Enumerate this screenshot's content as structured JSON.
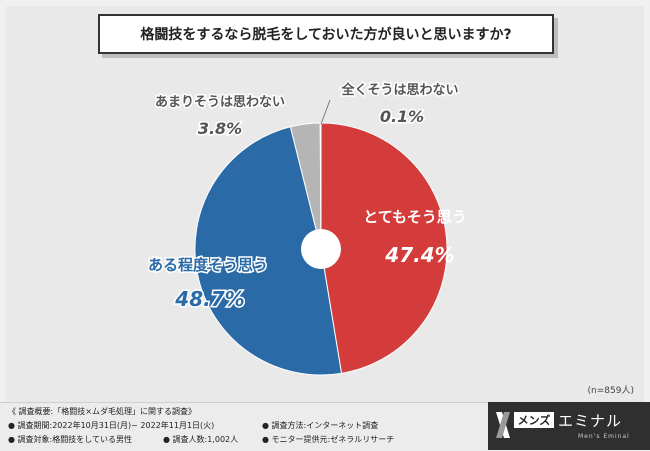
{
  "chart_data": {
    "type": "pie",
    "title": "格闘技をするなら脱毛をしておいた方が良いと思いますか?",
    "slices": [
      {
        "label": "とてもそう思う",
        "value": 47.4,
        "value_text": "47.4%",
        "color": "#d43b3b"
      },
      {
        "label": "ある程度そう思う",
        "value": 48.7,
        "value_text": "48.7%",
        "color": "#2a6aa6"
      },
      {
        "label": "あまりそうは思わない",
        "value": 3.8,
        "value_text": "3.8%",
        "color": "#b5b5b5"
      },
      {
        "label": "全くそうは思わない",
        "value": 0.1,
        "value_text": "0.1%",
        "color": "#7a7a7a"
      }
    ],
    "sample_size": "(n=859人)"
  },
  "footer": {
    "heading": "《 調査概要:「格闘技×ムダ毛処理」に関する調査》",
    "period": "● 調査期間:2022年10月31日(月)~ 2022年11月1日(火)",
    "method": "● 調査方法:インターネット調査",
    "target": "● 調査対象:格闘技をしている男性",
    "count": "● 調査人数:1,002人",
    "provider": "● モニター提供元:ゼネラルリサーチ"
  },
  "logo": {
    "box_text": "メンズ",
    "main_text": "エミナル",
    "sub_text": "Men's Eminal"
  }
}
